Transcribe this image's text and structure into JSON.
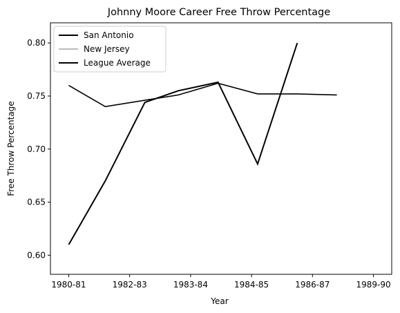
{
  "chart_data": {
    "type": "line",
    "title": "Johnny Moore  Career Free Throw Percentage",
    "xlabel": "Year",
    "ylabel": "Free Throw Percentage",
    "x_tick_labels": [
      "1980-81",
      "1982-83",
      "1983-84",
      "1984-85",
      "1986-87",
      "1989-90"
    ],
    "x_tick_positions": [
      0,
      2,
      4,
      6,
      8,
      10
    ],
    "xlim": [
      -0.6,
      10.6
    ],
    "ylim": [
      0.582,
      0.819
    ],
    "y_ticks": [
      0.6,
      0.65,
      0.7,
      0.75,
      0.8
    ],
    "y_tick_labels": [
      "0.60",
      "0.65",
      "0.70",
      "0.75",
      "0.80"
    ],
    "grid": false,
    "legend_position": "top-left",
    "series": [
      {
        "name": "San Antonio",
        "color": "#000000",
        "width": 2,
        "x": [
          0,
          1.2,
          2.5,
          3.6,
          4.9,
          6.2,
          7.5
        ],
        "values": [
          0.61,
          0.67,
          0.744,
          0.755,
          0.763,
          0.686,
          0.8
        ]
      },
      {
        "name": "New Jersey",
        "color": "#bbbbbb",
        "width": 2,
        "x": [],
        "values": []
      },
      {
        "name": "League Average",
        "color": "#000000",
        "width": 1.6,
        "x": [
          0,
          1.2,
          2.5,
          3.6,
          4.9,
          6.2,
          7.5,
          8.8
        ],
        "values": [
          0.76,
          0.74,
          0.746,
          0.751,
          0.762,
          0.752,
          0.752,
          0.751
        ]
      }
    ]
  }
}
